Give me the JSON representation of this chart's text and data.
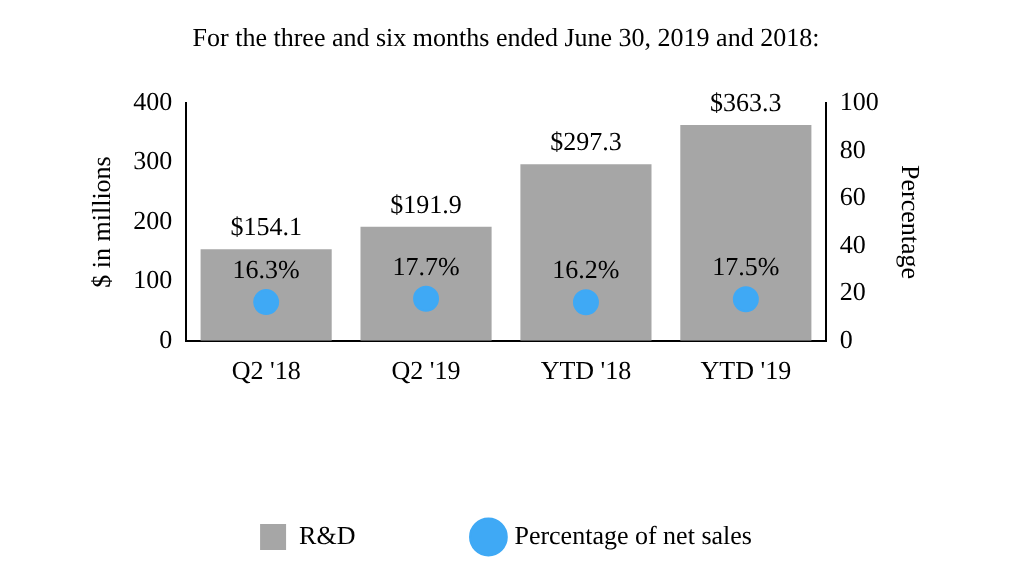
{
  "chart_data": {
    "type": "bar",
    "title": "For the three and six months ended June 30, 2019 and 2018:",
    "ylabel": "$ in millions",
    "y2label": "Percentage",
    "categories": [
      "Q2 '18",
      "Q2 '19",
      "YTD '18",
      "YTD '19"
    ],
    "series": [
      {
        "name": "R&D",
        "color": "#a6a6a6",
        "values": [
          154.1,
          191.9,
          297.3,
          363.3
        ],
        "value_labels": [
          "$154.1",
          "$191.9",
          "$297.3",
          "$363.3"
        ]
      },
      {
        "name": "Percentage of net sales",
        "type": "scatter",
        "axis": "y2",
        "marker": "circle",
        "x": [
          "Q2 '18",
          "Q2 '19",
          "YTD '18",
          "YTD '19"
        ],
        "color": "#3fa9f5",
        "values": [
          16.3,
          17.7,
          16.2,
          17.5
        ],
        "value_labels": [
          "16.3%",
          "17.7%",
          "16.2%",
          "17.5%"
        ]
      }
    ],
    "ylim": [
      0,
      400
    ],
    "yticks": [
      0,
      100,
      200,
      300,
      400
    ],
    "y2lim": [
      0,
      100
    ],
    "y2ticks": [
      0,
      20,
      40,
      60,
      80,
      100
    ],
    "grid": false,
    "legend": "bottom"
  }
}
